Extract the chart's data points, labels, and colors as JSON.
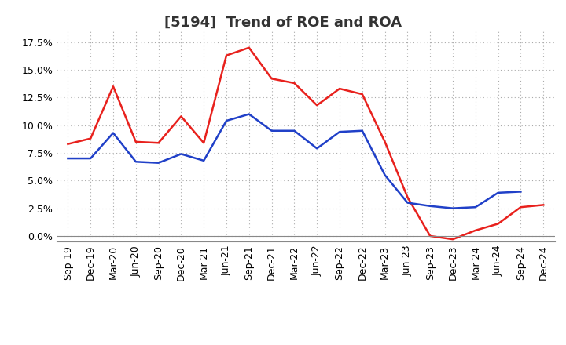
{
  "title": "[5194]  Trend of ROE and ROA",
  "x_labels": [
    "Sep-19",
    "Dec-19",
    "Mar-20",
    "Jun-20",
    "Sep-20",
    "Dec-20",
    "Mar-21",
    "Jun-21",
    "Sep-21",
    "Dec-21",
    "Mar-22",
    "Jun-22",
    "Sep-22",
    "Dec-22",
    "Mar-23",
    "Jun-23",
    "Sep-23",
    "Dec-23",
    "Mar-24",
    "Jun-24",
    "Sep-24",
    "Dec-24"
  ],
  "roe": [
    8.3,
    8.8,
    13.5,
    8.5,
    8.4,
    10.8,
    8.4,
    16.3,
    17.0,
    14.2,
    13.8,
    11.8,
    13.3,
    12.8,
    8.5,
    3.5,
    0.0,
    -0.3,
    0.5,
    1.1,
    2.6,
    2.8
  ],
  "roa": [
    7.0,
    7.0,
    9.3,
    6.7,
    6.6,
    7.4,
    6.8,
    10.4,
    11.0,
    9.5,
    9.5,
    7.9,
    9.4,
    9.5,
    5.5,
    3.0,
    2.7,
    2.5,
    2.6,
    3.9,
    4.0,
    null
  ],
  "roe_color": "#e8211d",
  "roa_color": "#2040c8",
  "background_color": "#ffffff",
  "plot_bg_color": "#ffffff",
  "grid_color": "#aaaaaa",
  "ylim": [
    -0.5,
    18.5
  ],
  "yticks": [
    0.0,
    2.5,
    5.0,
    7.5,
    10.0,
    12.5,
    15.0,
    17.5
  ],
  "title_fontsize": 13,
  "legend_fontsize": 11,
  "tick_fontsize": 9
}
